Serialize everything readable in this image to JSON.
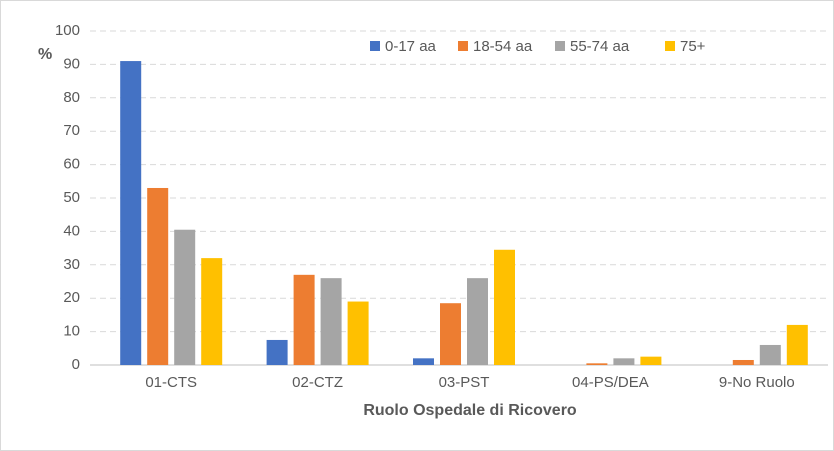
{
  "chart_data": {
    "type": "bar",
    "y_label": "%",
    "x_label": "Ruolo Ospedale di Ricovero",
    "categories": [
      "01-CTS",
      "02-CTZ",
      "03-PST",
      "04-PS/DEA",
      "9-No Ruolo"
    ],
    "series": [
      {
        "name": "0-17 aa",
        "color": "#4472c4",
        "values": [
          91,
          7.5,
          2,
          0,
          0
        ]
      },
      {
        "name": "18-54 aa",
        "color": "#ed7d31",
        "values": [
          53,
          27,
          18.5,
          0.5,
          1.5
        ]
      },
      {
        "name": "55-74 aa",
        "color": "#a5a5a5",
        "values": [
          40.5,
          26,
          26,
          2,
          6
        ]
      },
      {
        "name": "75+",
        "color": "#ffc000",
        "values": [
          32,
          19,
          34.5,
          2.5,
          12
        ]
      }
    ],
    "ylim": [
      0,
      100
    ],
    "yticks": [
      0,
      10,
      20,
      30,
      40,
      50,
      60,
      70,
      80,
      90,
      100
    ],
    "grid": true,
    "legend": "top"
  }
}
